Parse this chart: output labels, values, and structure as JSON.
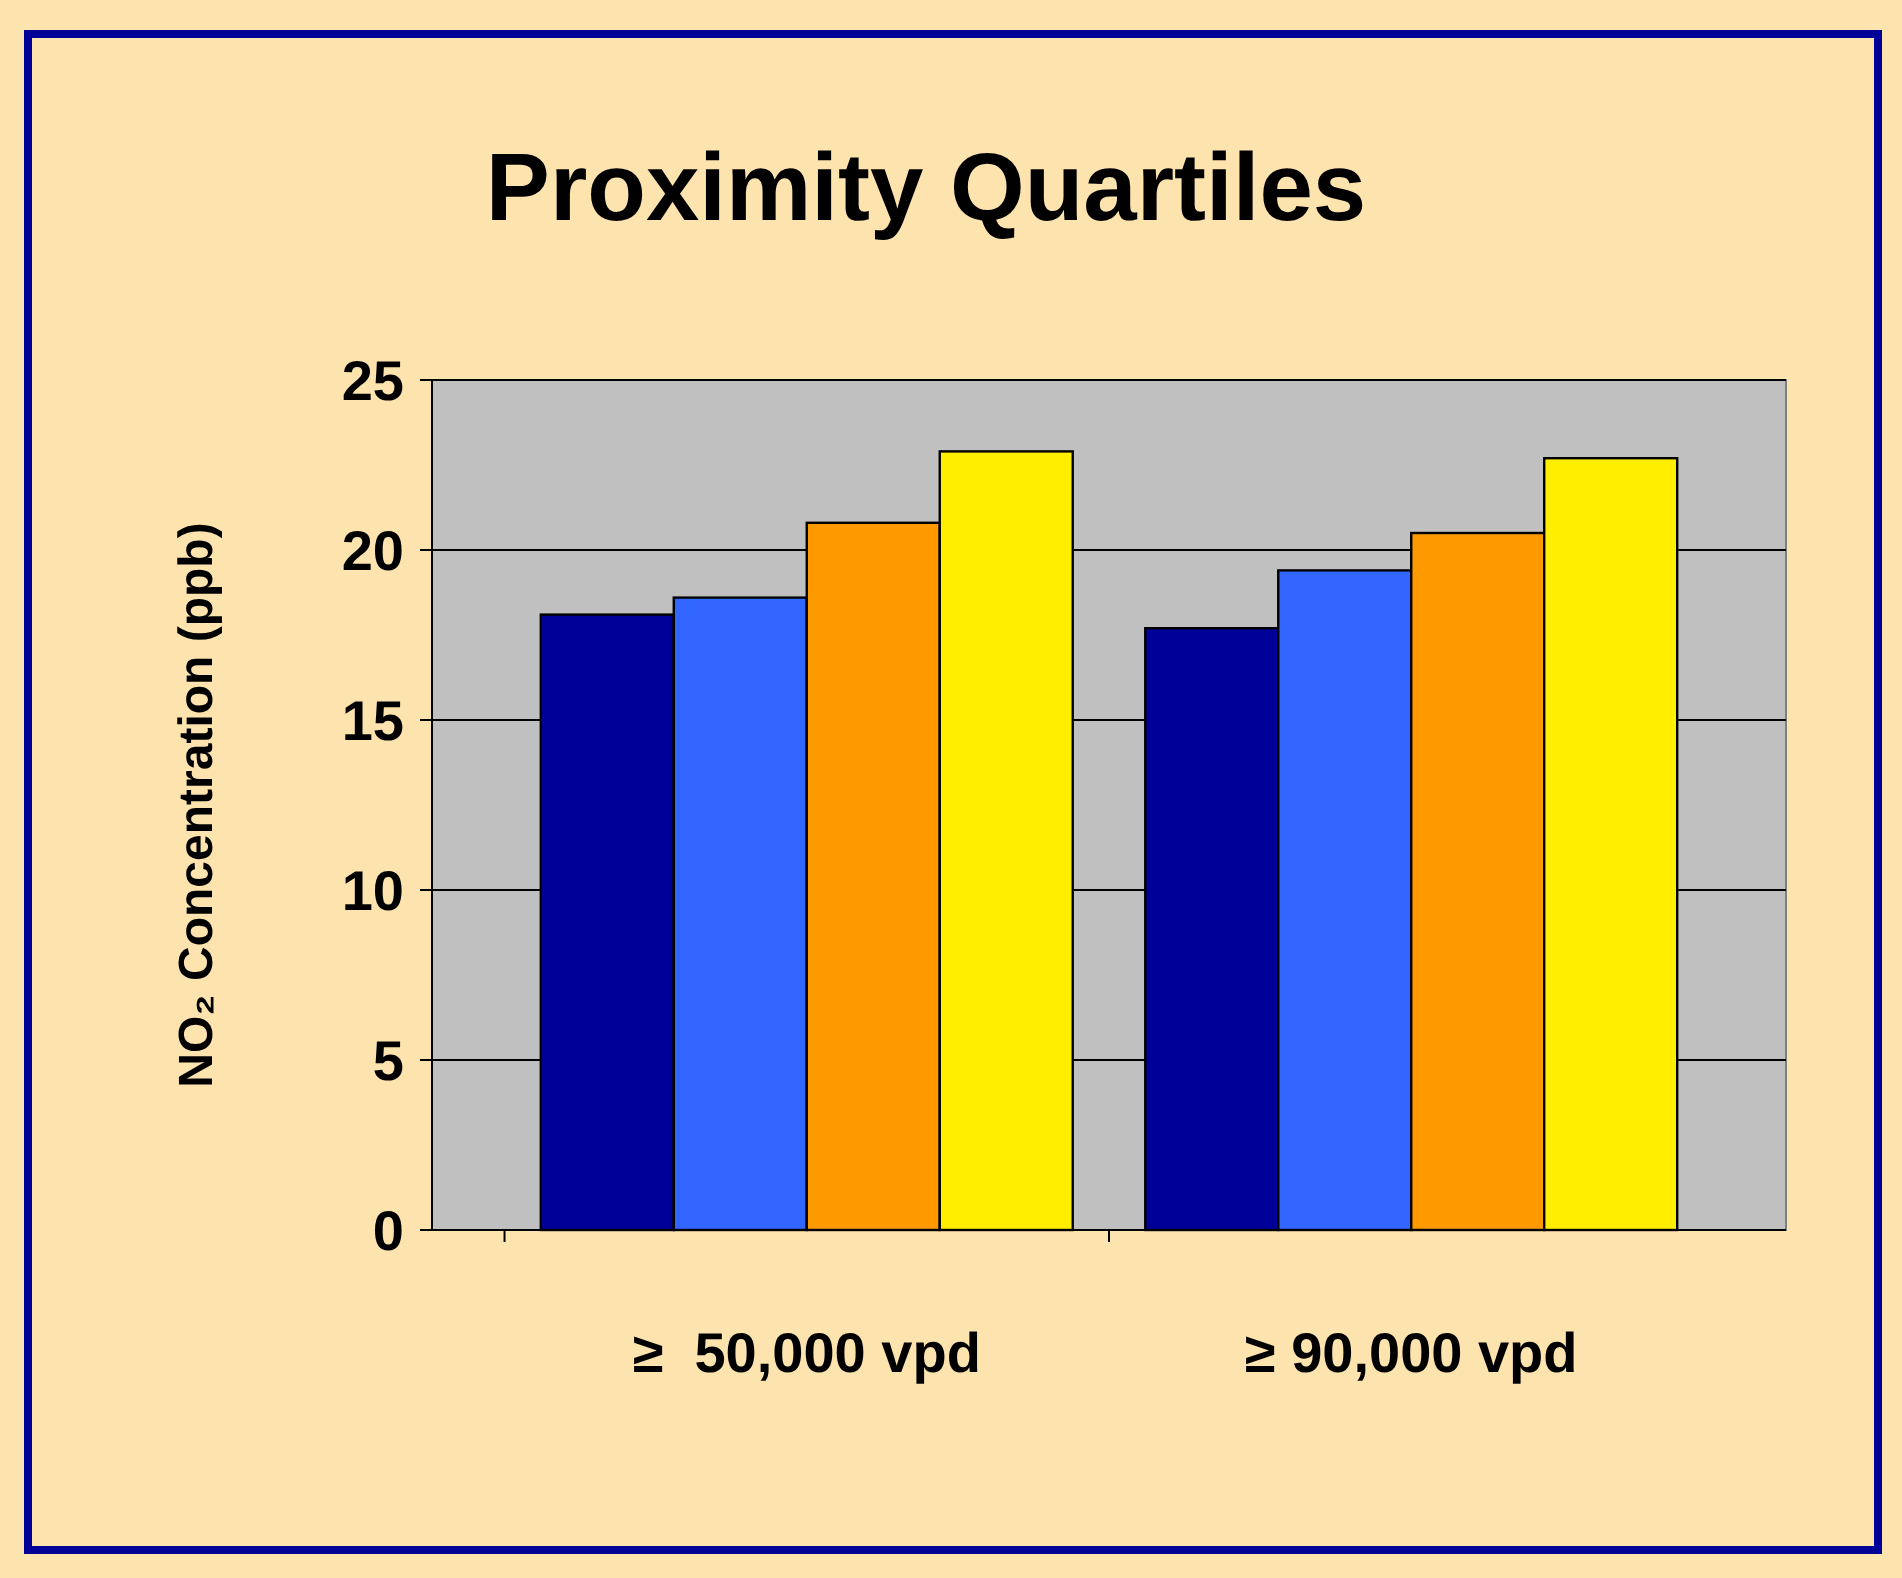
{
  "chart_data": {
    "type": "bar",
    "title": "Proximity Quartiles",
    "ylabel": "NO₂ Concentration (ppb)",
    "categories": [
      "≥  50,000 vpd",
      "≥ 90,000 vpd"
    ],
    "series": [
      {
        "color": "#000099",
        "values": [
          18.1,
          17.7
        ]
      },
      {
        "color": "#3366ff",
        "values": [
          18.6,
          19.4
        ]
      },
      {
        "color": "#ff9900",
        "values": [
          20.8,
          20.5
        ]
      },
      {
        "color": "#ffee00",
        "values": [
          22.9,
          22.7
        ]
      }
    ],
    "ylim": [
      0,
      25
    ],
    "yticks": [
      0,
      5,
      10,
      15,
      20,
      25
    ],
    "grid": "y"
  }
}
